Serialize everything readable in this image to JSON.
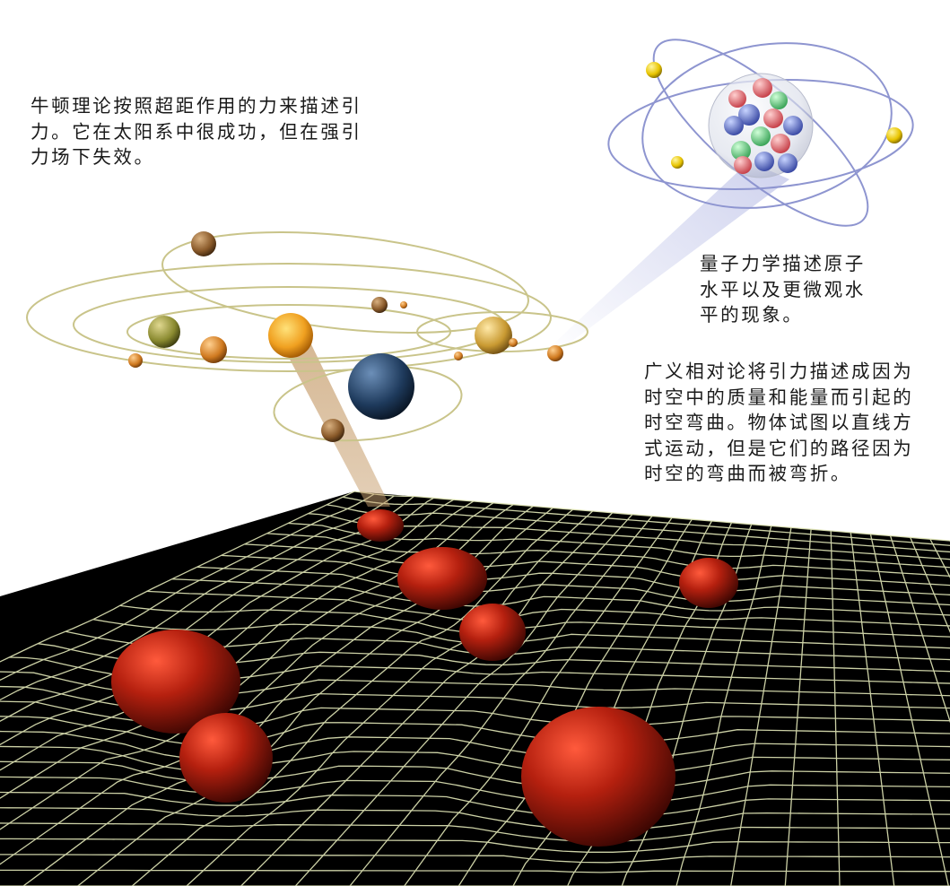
{
  "captions": {
    "newton": "牛顿理论按照超距作用的力来描述引\n力。它在太阳系中很成功，但在强引\n力场下失效。",
    "quantum": "量子力学描述原子\n水平以及更微观水\n平的现象。",
    "general_relativity": "广义相对论将引力描述成因为\n时空中的质量和能量而引起的\n时空弯曲。物体试图以直线方\n式运动，但是它们的路径因为\n时空的弯曲而被弯折。"
  },
  "colors": {
    "grid_line": "#e3e8b8",
    "grid_background": "#000000",
    "sphere": "#b5200f",
    "orbit": "#c9c48a",
    "sun": "#f0a020",
    "atom_orbit": "#8e95d0",
    "electron": "#e8c400"
  },
  "icons": {
    "solar_system": "solar-system-illustration",
    "atom": "atom-illustration",
    "spacetime": "curved-spacetime-grid-illustration"
  }
}
